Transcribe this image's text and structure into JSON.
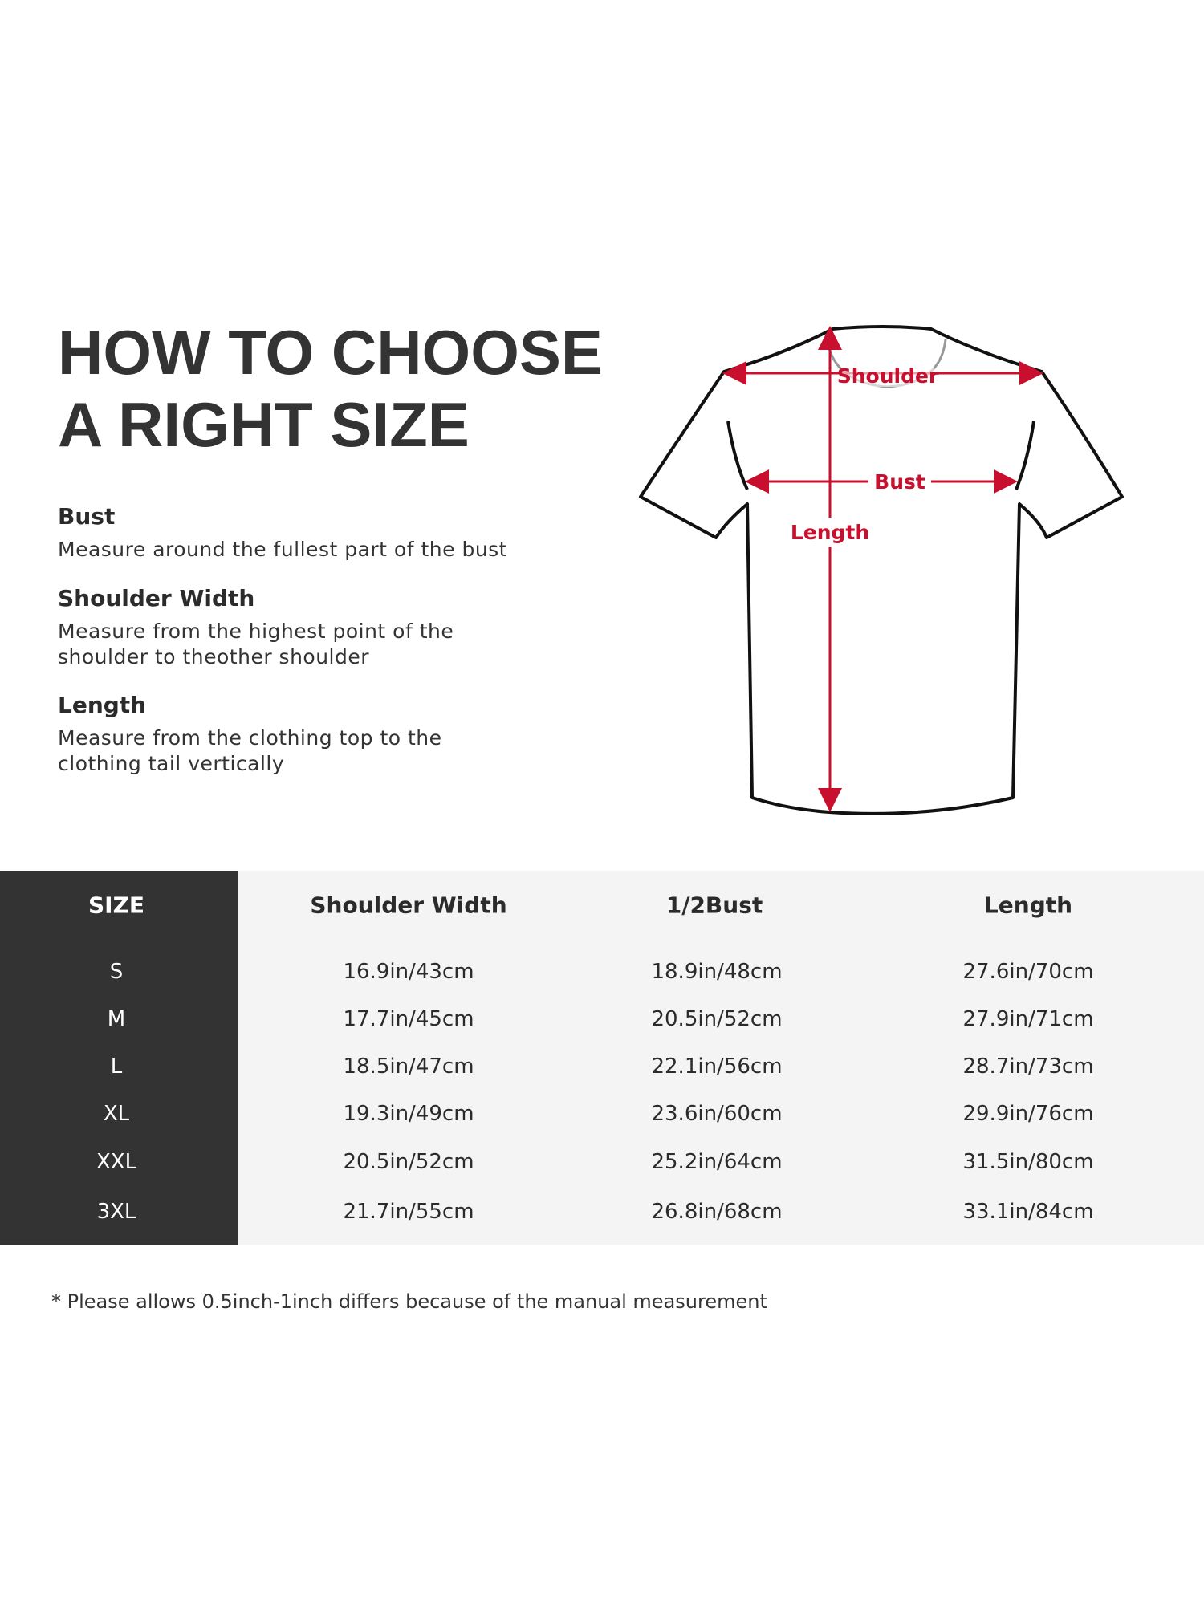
{
  "title": {
    "line1": "HOW TO CHOOSE",
    "line2": "A RIGHT SIZE"
  },
  "guide": [
    {
      "heading": "Bust",
      "lines": [
        "Measure around the fullest part of the bust"
      ]
    },
    {
      "heading": "Shoulder Width",
      "lines": [
        "Measure from the highest point of the",
        "shoulder to theother shoulder"
      ]
    },
    {
      "heading": "Length",
      "lines": [
        "Measure from the clothing top to the",
        "clothing tail vertically"
      ]
    }
  ],
  "diagram": {
    "shoulder": "Shoulder",
    "bust": "Bust",
    "length": "Length",
    "accent_color": "#c8102e"
  },
  "table": {
    "headers": [
      "SIZE",
      "Shoulder Width",
      "1/2Bust",
      "Length"
    ],
    "rows": [
      [
        "S",
        "16.9in/43cm",
        "18.9in/48cm",
        "27.6in/70cm"
      ],
      [
        "M",
        "17.7in/45cm",
        "20.5in/52cm",
        "27.9in/71cm"
      ],
      [
        "L",
        "18.5in/47cm",
        "22.1in/56cm",
        "28.7in/73cm"
      ],
      [
        "XL",
        "19.3in/49cm",
        "23.6in/60cm",
        "29.9in/76cm"
      ],
      [
        "XXL",
        "20.5in/52cm",
        "25.2in/64cm",
        "31.5in/80cm"
      ],
      [
        "3XL",
        "21.7in/55cm",
        "26.8in/68cm",
        "33.1in/84cm"
      ]
    ]
  },
  "footnote": "* Please allows 0.5inch-1inch differs because of the  manual measurement"
}
